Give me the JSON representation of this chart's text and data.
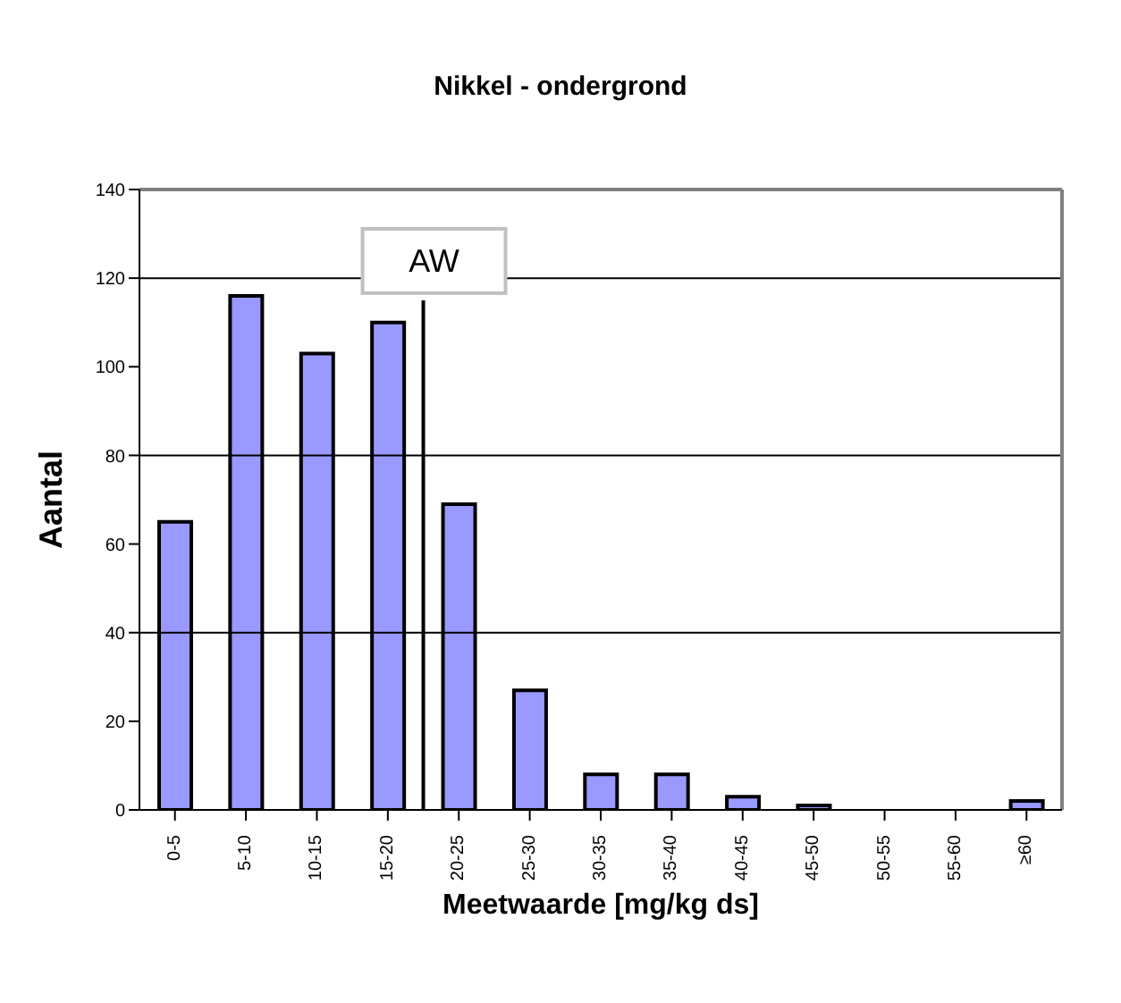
{
  "chart_data": {
    "type": "bar",
    "title": "Nikkel - ondergrond",
    "xlabel": "Meetwaarde [mg/kg ds]",
    "ylabel": "Aantal",
    "categories": [
      "0-5",
      "5-10",
      "10-15",
      "15-20",
      "20-25",
      "25-30",
      "30-35",
      "35-40",
      "40-45",
      "45-50",
      "50-55",
      "55-60",
      "≥60"
    ],
    "values": [
      65,
      116,
      103,
      110,
      69,
      27,
      8,
      8,
      3,
      1,
      0,
      0,
      2
    ],
    "color": "#9999ff",
    "ylim": [
      0,
      140
    ],
    "yticks": [
      0,
      20,
      40,
      60,
      80,
      100,
      120,
      140
    ],
    "grid": "y",
    "ref_lines": [
      {
        "axis": "x",
        "value": "20-25",
        "label": "AW",
        "color": "#000000"
      }
    ]
  }
}
